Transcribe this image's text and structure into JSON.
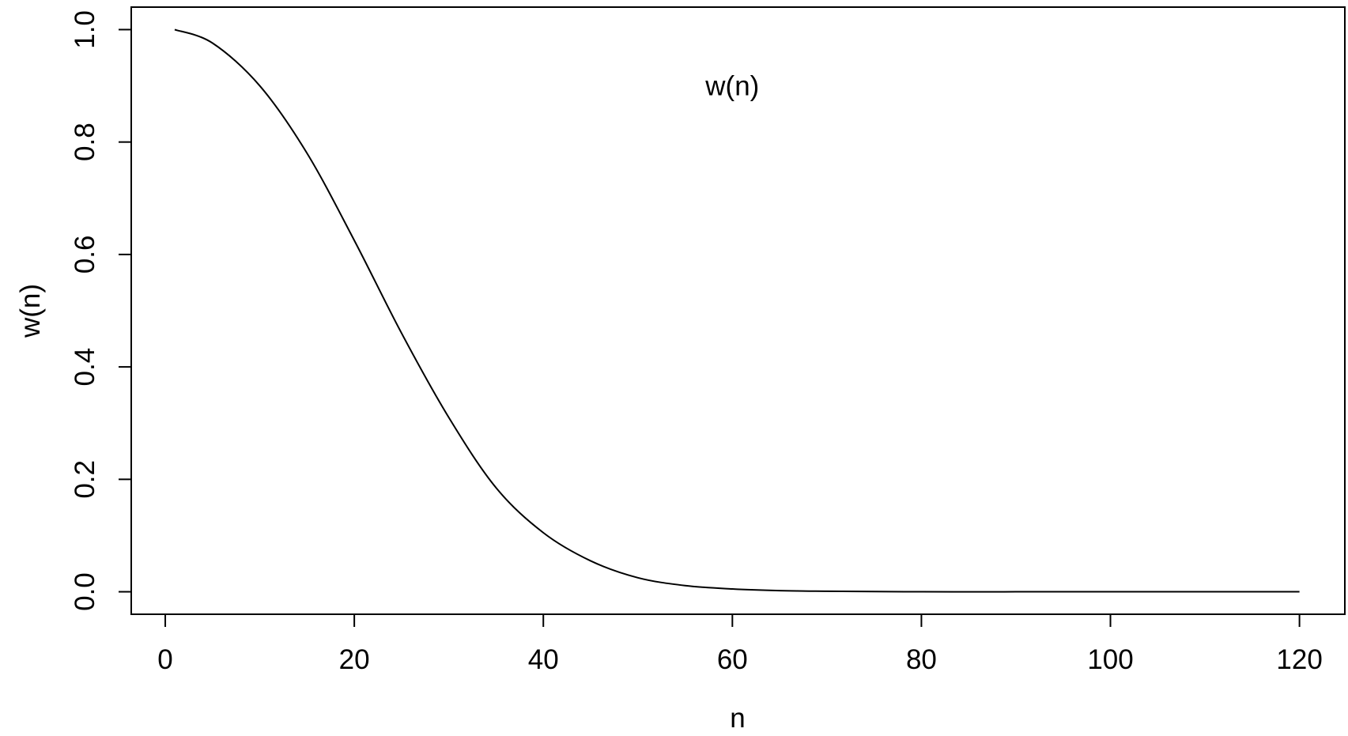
{
  "chart_data": {
    "type": "line",
    "title": "",
    "xlabel": "n",
    "ylabel": "w(n)",
    "xlim": [
      -3.6,
      124.8
    ],
    "ylim": [
      -0.04,
      1.04
    ],
    "x_ticks": [
      0,
      20,
      40,
      60,
      80,
      100,
      120
    ],
    "y_ticks": [
      0.0,
      0.2,
      0.4,
      0.6,
      0.8,
      1.0
    ],
    "x_tick_labels": [
      "0",
      "20",
      "40",
      "60",
      "80",
      "100",
      "120"
    ],
    "y_tick_labels": [
      "0.0",
      "0.2",
      "0.4",
      "0.6",
      "0.8",
      "1.0"
    ],
    "grid": false,
    "annotations": [
      {
        "text": "w(n)",
        "x": 60,
        "y": 0.9
      }
    ],
    "series": [
      {
        "color": "#000000",
        "x": [
          1,
          5,
          10,
          15,
          20,
          25,
          30,
          35,
          40,
          45,
          50,
          55,
          60,
          65,
          70,
          80,
          90,
          100,
          110,
          120
        ],
        "y": [
          1.0,
          0.976,
          0.9,
          0.78,
          0.625,
          0.46,
          0.31,
          0.185,
          0.105,
          0.055,
          0.025,
          0.011,
          0.005,
          0.002,
          0.001,
          0.0,
          0.0,
          0.0,
          0.0,
          0.0
        ]
      }
    ]
  }
}
